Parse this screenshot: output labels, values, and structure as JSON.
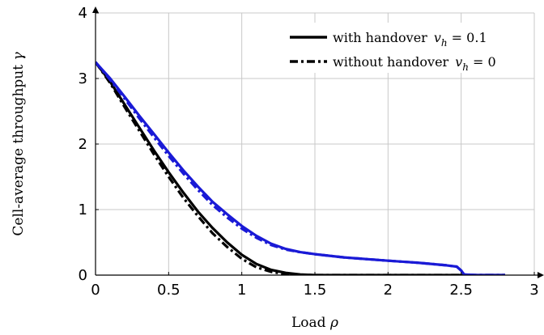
{
  "chart_data": {
    "type": "line",
    "xlabel": "Load",
    "xlabel_symbol": "ρ",
    "ylabel": "Cell-average throughput",
    "ylabel_symbol": "γ",
    "xlim": [
      0,
      3
    ],
    "ylim": [
      0,
      4
    ],
    "xticks": [
      0,
      0.5,
      1,
      1.5,
      2,
      2.5,
      3
    ],
    "xtick_labels": [
      "0",
      "0.5",
      "1",
      "1.5",
      "2",
      "2.5",
      "3"
    ],
    "yticks": [
      0,
      1,
      2,
      3,
      4
    ],
    "ytick_labels": [
      "0",
      "1",
      "2",
      "3",
      "4"
    ],
    "grid": true,
    "legend_position": "top-right",
    "legend": [
      {
        "text": "with handover",
        "math_var": "v",
        "math_sub": "h",
        "math_rest": " = 0.1",
        "style": "solid"
      },
      {
        "text": "without handover",
        "math_var": "v",
        "math_sub": "h",
        "math_rest": " = 0",
        "style": "dashdot"
      }
    ],
    "colors": {
      "black": "#000000",
      "blue": "#1a1ad6"
    },
    "series": [
      {
        "color": "black",
        "style": "solid",
        "x": [
          0,
          0.1,
          0.2,
          0.3,
          0.4,
          0.5,
          0.6,
          0.7,
          0.8,
          0.9,
          1.0,
          1.1,
          1.2,
          1.3,
          1.4,
          1.5,
          1.6,
          2.0,
          2.5,
          2.8
        ],
        "y": [
          3.25,
          2.95,
          2.6,
          2.25,
          1.9,
          1.57,
          1.26,
          0.97,
          0.72,
          0.5,
          0.31,
          0.17,
          0.08,
          0.035,
          0.01,
          0.0,
          0.0,
          0.0,
          0.0,
          0.0
        ]
      },
      {
        "color": "black",
        "style": "dashdot",
        "x": [
          0,
          0.1,
          0.2,
          0.3,
          0.4,
          0.5,
          0.6,
          0.7,
          0.8,
          0.9,
          1.0,
          1.1,
          1.2,
          1.3,
          1.4,
          1.5,
          2.0,
          2.5,
          2.8
        ],
        "y": [
          3.25,
          2.93,
          2.56,
          2.2,
          1.84,
          1.5,
          1.18,
          0.9,
          0.64,
          0.43,
          0.25,
          0.12,
          0.05,
          0.015,
          0.0,
          0.0,
          0.0,
          0.0,
          0.0
        ]
      },
      {
        "color": "blue",
        "style": "solid",
        "x": [
          0,
          0.1,
          0.2,
          0.3,
          0.4,
          0.5,
          0.6,
          0.7,
          0.8,
          0.9,
          1.0,
          1.1,
          1.2,
          1.3,
          1.4,
          1.5,
          1.7,
          2.0,
          2.2,
          2.4,
          2.47,
          2.5,
          2.52,
          2.6,
          2.8
        ],
        "y": [
          3.25,
          3.0,
          2.72,
          2.43,
          2.15,
          1.87,
          1.6,
          1.35,
          1.12,
          0.93,
          0.75,
          0.6,
          0.48,
          0.4,
          0.35,
          0.32,
          0.27,
          0.22,
          0.19,
          0.15,
          0.13,
          0.07,
          0.01,
          0.0,
          0.0
        ]
      },
      {
        "color": "blue",
        "style": "dashdot",
        "x": [
          0,
          0.1,
          0.2,
          0.3,
          0.4,
          0.5,
          0.6,
          0.7,
          0.8,
          0.9,
          1.0,
          1.1,
          1.2,
          1.3,
          1.4,
          1.5,
          1.7,
          2.0,
          2.2,
          2.4,
          2.47,
          2.5,
          2.52,
          2.6,
          2.8
        ],
        "y": [
          3.25,
          2.98,
          2.69,
          2.39,
          2.1,
          1.82,
          1.55,
          1.3,
          1.07,
          0.88,
          0.71,
          0.57,
          0.46,
          0.39,
          0.35,
          0.32,
          0.27,
          0.22,
          0.19,
          0.15,
          0.13,
          0.07,
          0.01,
          0.0,
          0.0
        ]
      }
    ]
  }
}
